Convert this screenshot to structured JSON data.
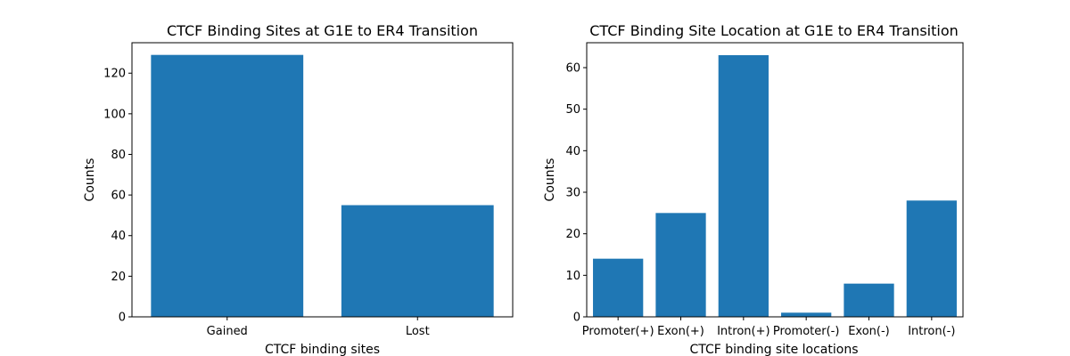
{
  "chart_data": [
    {
      "type": "bar",
      "title": "CTCF Binding Sites at G1E to ER4 Transition",
      "xlabel": "CTCF binding sites",
      "ylabel": "Counts",
      "categories": [
        "Gained",
        "Lost"
      ],
      "values": [
        129,
        55
      ],
      "ylim": [
        0,
        135
      ],
      "yticks": [
        0,
        20,
        40,
        60,
        80,
        100,
        120
      ],
      "bar_color": "#1f77b4",
      "grid": false
    },
    {
      "type": "bar",
      "title": "CTCF Binding Site Location at G1E to ER4 Transition",
      "xlabel": "CTCF binding site locations",
      "ylabel": "Counts",
      "categories": [
        "Promoter(+)",
        "Exon(+)",
        "Intron(+)",
        "Promoter(-)",
        "Exon(-)",
        "Intron(-)"
      ],
      "values": [
        14,
        25,
        63,
        1,
        8,
        28
      ],
      "ylim": [
        0,
        66
      ],
      "yticks": [
        0,
        10,
        20,
        30,
        40,
        50,
        60
      ],
      "bar_color": "#1f77b4",
      "grid": false
    }
  ]
}
